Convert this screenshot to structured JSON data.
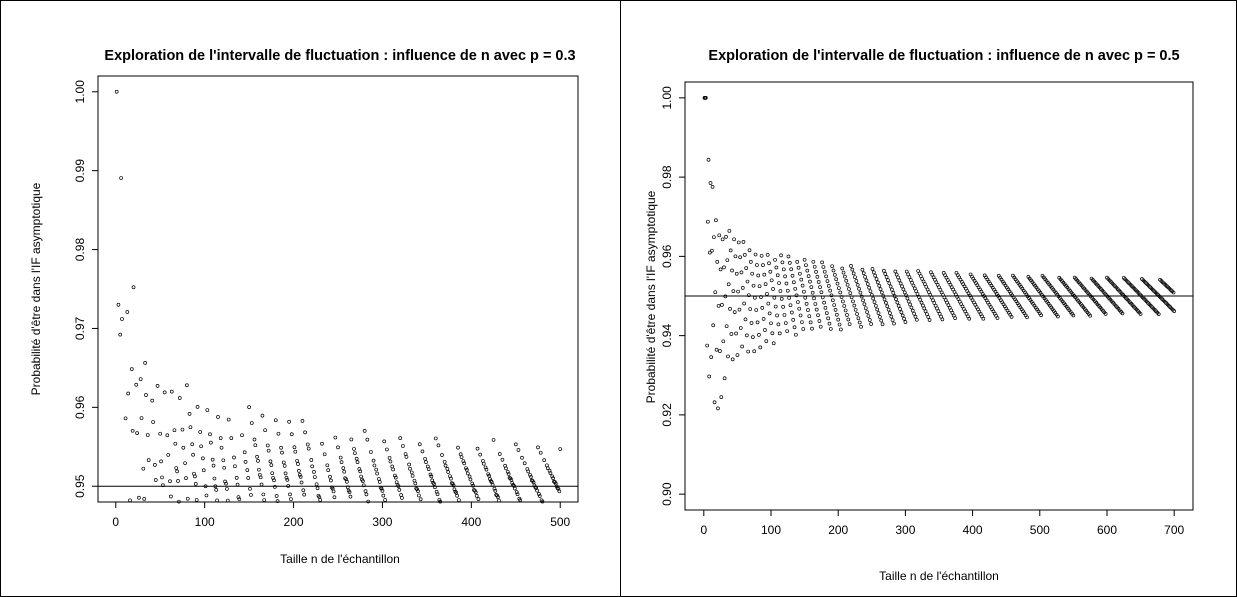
{
  "chart_data": [
    {
      "type": "scatter",
      "title": "Exploration de l'intervalle de fluctuation : influence de n avec p = 0.3",
      "xlabel": "Taille n de l'échantillon",
      "ylabel": "Probabilité  d'être dans l'IF asymptotique",
      "xlim": [
        0,
        500
      ],
      "ylim": [
        0.95,
        1.0
      ],
      "x_ticks": [
        0,
        100,
        200,
        300,
        400,
        500
      ],
      "x_tick_labels": [
        "0",
        "100",
        "200",
        "300",
        "400",
        "500"
      ],
      "y_ticks": [
        0.95,
        0.96,
        0.97,
        0.98,
        0.99,
        1.0
      ],
      "y_tick_labels": [
        "0.95",
        "0.96",
        "0.97",
        "0.98",
        "0.99",
        "1.00"
      ],
      "hline": 0.95,
      "p": 0.3,
      "n_max": 500,
      "marker": "open-circle",
      "color": "#000000"
    },
    {
      "type": "scatter",
      "title": "Exploration de l'intervalle de fluctuation : influence de n avec p = 0.5",
      "xlabel": "Taille n de l'échantillon",
      "ylabel": "Probabilité  d'être dans l'IF asymptotique",
      "xlim": [
        0,
        700
      ],
      "ylim": [
        0.9,
        1.0
      ],
      "x_ticks": [
        0,
        100,
        200,
        300,
        400,
        500,
        600,
        700
      ],
      "x_tick_labels": [
        "0",
        "100",
        "200",
        "300",
        "400",
        "500",
        "600",
        "700"
      ],
      "y_ticks": [
        0.9,
        0.92,
        0.94,
        0.96,
        0.98,
        1.0
      ],
      "y_tick_labels": [
        "0.90",
        "0.92",
        "0.94",
        "0.96",
        "0.98",
        "1.00"
      ],
      "hline": 0.95,
      "p": 0.5,
      "n_max": 700,
      "marker": "open-circle",
      "color": "#000000"
    }
  ]
}
